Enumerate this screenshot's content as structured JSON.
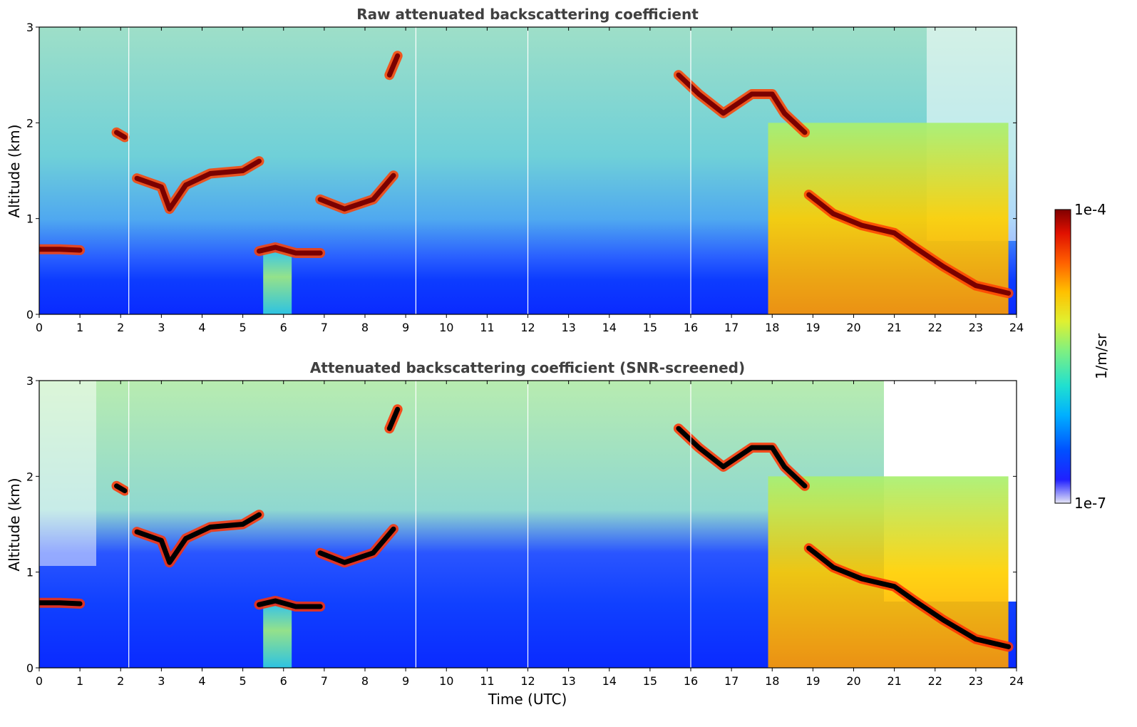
{
  "chart_data": [
    {
      "type": "heatmap",
      "title": "Raw attenuated backscattering coefficient",
      "xlabel": "",
      "ylabel": "Altitude (km)",
      "xlim": [
        0,
        24
      ],
      "ylim": [
        0,
        3
      ],
      "xticks": [
        "0",
        "1",
        "2",
        "3",
        "4",
        "5",
        "6",
        "7",
        "8",
        "9",
        "10",
        "11",
        "12",
        "13",
        "14",
        "15",
        "16",
        "17",
        "18",
        "19",
        "20",
        "21",
        "22",
        "23",
        "24"
      ],
      "yticks": [
        "0",
        "1",
        "2",
        "3"
      ],
      "cloud_layers": [
        {
          "t": [
            0.0,
            0.5,
            1.0
          ],
          "alt": [
            0.68,
            0.68,
            0.67
          ]
        },
        {
          "t": [
            1.9,
            2.1
          ],
          "alt": [
            1.9,
            1.85
          ]
        },
        {
          "t": [
            2.4,
            3.0,
            3.2,
            3.6,
            4.2,
            5.0,
            5.4
          ],
          "alt": [
            1.42,
            1.33,
            1.1,
            1.35,
            1.47,
            1.5,
            1.6
          ]
        },
        {
          "t": [
            5.4,
            5.8,
            6.3,
            6.9
          ],
          "alt": [
            0.66,
            0.7,
            0.64,
            0.64
          ]
        },
        {
          "t": [
            6.9,
            7.5,
            8.2,
            8.5,
            8.7
          ],
          "alt": [
            1.2,
            1.1,
            1.2,
            1.35,
            1.45
          ]
        },
        {
          "t": [
            8.6,
            8.8
          ],
          "alt": [
            2.5,
            2.7
          ]
        },
        {
          "t": [
            15.7,
            16.2,
            16.8,
            17.5,
            18.0,
            18.3,
            18.8
          ],
          "alt": [
            2.5,
            2.3,
            2.1,
            2.3,
            2.3,
            2.1,
            1.9
          ]
        },
        {
          "t": [
            18.9,
            19.5,
            20.2,
            21.0,
            21.5,
            22.2,
            23.0,
            23.8
          ],
          "alt": [
            1.25,
            1.05,
            0.93,
            0.85,
            0.7,
            0.5,
            0.3,
            0.22
          ]
        }
      ],
      "precip_bands": [
        {
          "t": [
            5.5,
            6.2
          ]
        },
        {
          "t": [
            17.9,
            23.8
          ]
        }
      ]
    },
    {
      "type": "heatmap",
      "title": "Attenuated backscattering coefficient (SNR-screened)",
      "xlabel": "Time (UTC)",
      "ylabel": "Altitude (km)",
      "xlim": [
        0,
        24
      ],
      "ylim": [
        0,
        3
      ],
      "xticks": [
        "0",
        "1",
        "2",
        "3",
        "4",
        "5",
        "6",
        "7",
        "8",
        "9",
        "10",
        "11",
        "12",
        "13",
        "14",
        "15",
        "16",
        "17",
        "18",
        "19",
        "20",
        "21",
        "22",
        "23",
        "24"
      ],
      "yticks": [
        "0",
        "1",
        "2",
        "3"
      ]
    }
  ],
  "colorbar": {
    "min_label": "1e-7",
    "max_label": "1e-4",
    "label": "1/m/sr",
    "colors": [
      "#e6e6f5",
      "#0000ff",
      "#0066ff",
      "#00c0ff",
      "#30e0c0",
      "#80f080",
      "#e0f030",
      "#ffc000",
      "#ff6000",
      "#e01000",
      "#800000"
    ]
  }
}
